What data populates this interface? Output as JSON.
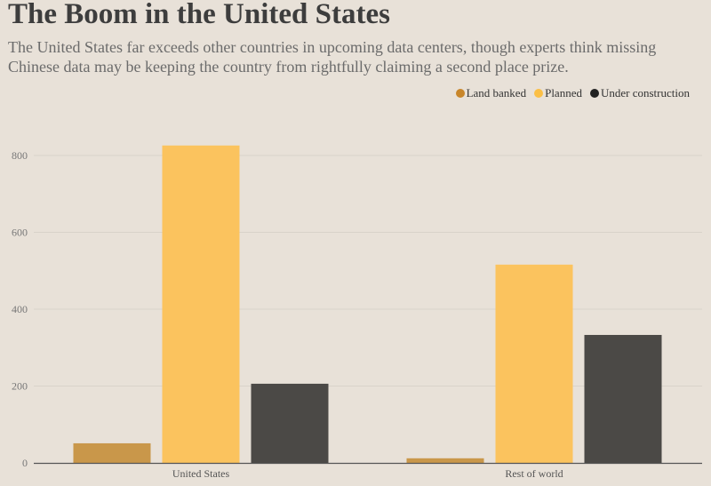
{
  "chart_data": {
    "type": "bar",
    "title": "The Boom in the United States",
    "subtitle": "The United States far exceeds other countries in upcoming data centers, though experts think missing Chinese data may be keeping the country from rightfully claiming a second place prize.",
    "categories": [
      "United States",
      "Rest of world"
    ],
    "series": [
      {
        "name": "Land banked",
        "color": "#c9974a",
        "legend_color": "#c8862a",
        "values": [
          51,
          12
        ]
      },
      {
        "name": "Planned",
        "color": "#fbc35e",
        "legend_color": "#fbbf45",
        "values": [
          826,
          516
        ]
      },
      {
        "name": "Under construction",
        "color": "#4b4946",
        "legend_color": "#222222",
        "values": [
          206,
          333
        ]
      }
    ],
    "ylim": [
      0,
      900
    ],
    "yticks": [
      0,
      200,
      400,
      600,
      800
    ],
    "xlabel": "",
    "ylabel": "",
    "grid": true,
    "legend": "top-right"
  }
}
